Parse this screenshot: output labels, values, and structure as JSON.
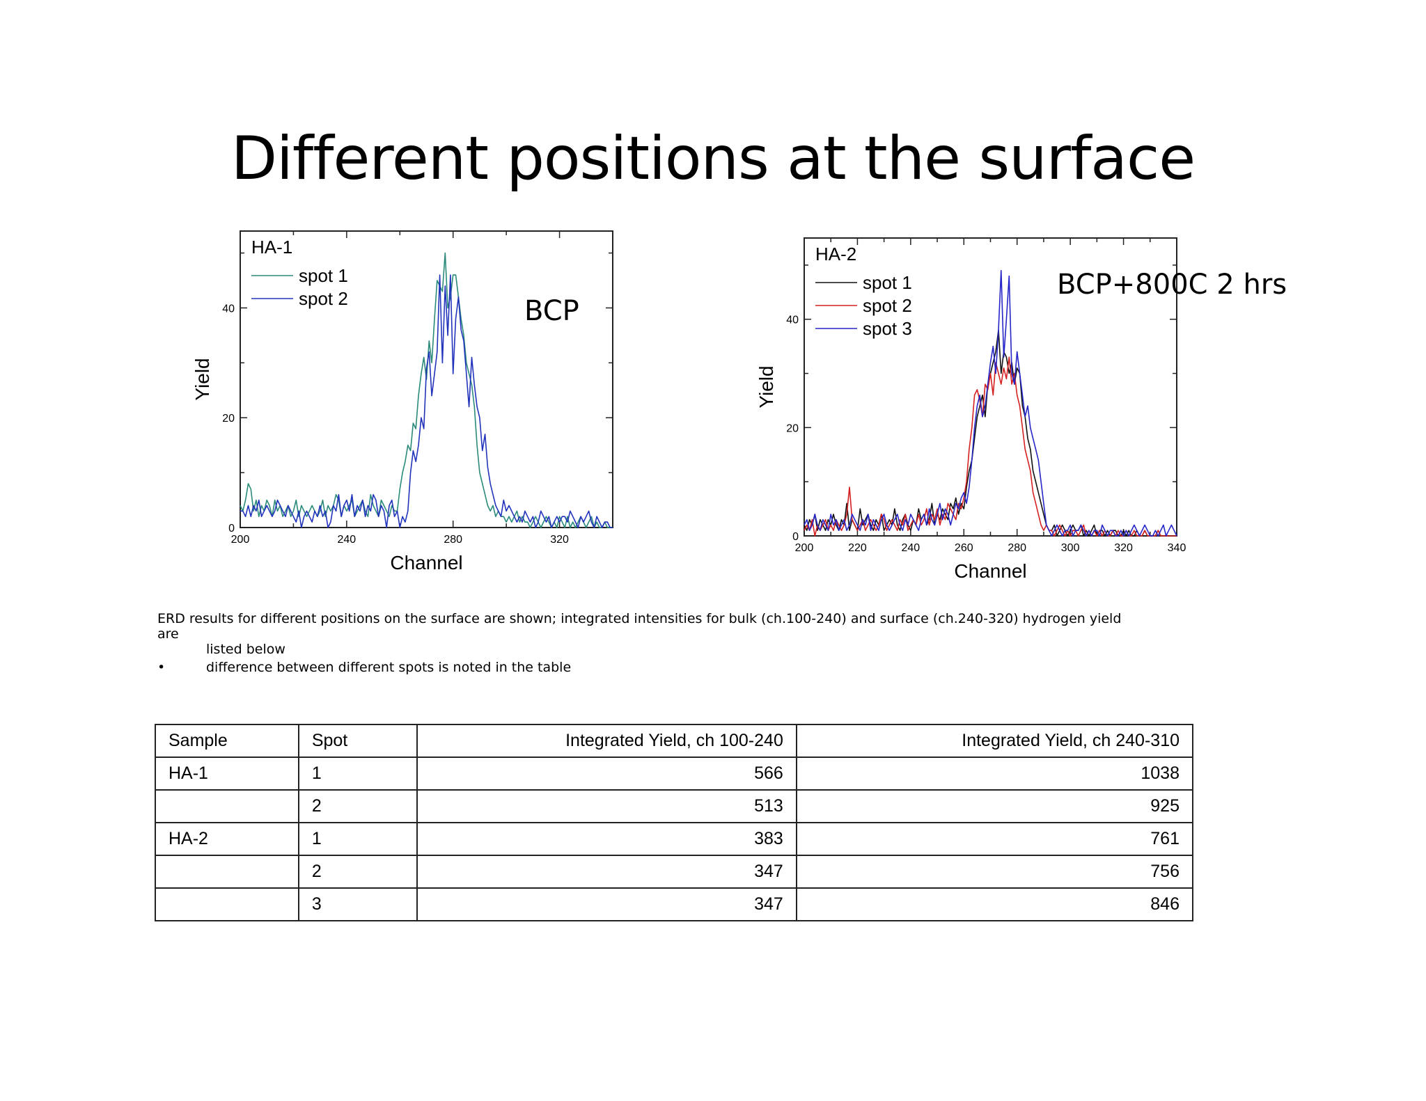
{
  "slide": {
    "title": "Different positions at the surface",
    "caption_line1": "ERD results for different positions on the surface are shown; integrated intensities for bulk (ch.100-240) and surface (ch.240-320) hydrogen yield are",
    "caption_line2": "listed below",
    "bullet_symbol": "•",
    "bullet_text": "difference between different spots is noted in the table"
  },
  "chart_annotations": [
    "BCP",
    "BCP+800C 2 hrs"
  ],
  "chart_data": [
    {
      "type": "line",
      "title": "HA-1",
      "xlabel": "Channel",
      "ylabel": "Yield",
      "xlim": [
        200,
        340
      ],
      "ylim": [
        0,
        54
      ],
      "xticks": [
        200,
        240,
        280,
        320
      ],
      "yticks": [
        0,
        20,
        40
      ],
      "legend": "top-left",
      "series": [
        {
          "name": "spot 1",
          "color": "#2a8a7a",
          "start": 200,
          "step": 1,
          "values": [
            4,
            3,
            5,
            8,
            7,
            3,
            5,
            2,
            4,
            3,
            5,
            4,
            2,
            5,
            3,
            4,
            2,
            3,
            4,
            2,
            3,
            5,
            2,
            4,
            3,
            2,
            3,
            4,
            3,
            2,
            3,
            5,
            2,
            4,
            3,
            4,
            6,
            5,
            2,
            4,
            3,
            4,
            5,
            2,
            3,
            4,
            5,
            3,
            2,
            6,
            4,
            3,
            2,
            5,
            4,
            3,
            2,
            4,
            3,
            3,
            7,
            10,
            12,
            15,
            14,
            19,
            18,
            24,
            28,
            31,
            27,
            34,
            30,
            38,
            45,
            44,
            43,
            50,
            40,
            42,
            46,
            46,
            42,
            38,
            35,
            30,
            28,
            26,
            22,
            15,
            10,
            8,
            6,
            4,
            3,
            4,
            2,
            3,
            2,
            2,
            1,
            2,
            1,
            2,
            3,
            1,
            2,
            1,
            1,
            0,
            1,
            2,
            1,
            0,
            1,
            2,
            1,
            0,
            1,
            0,
            2,
            1,
            0,
            2,
            0,
            1,
            0,
            1,
            2,
            1,
            0,
            1,
            2,
            0,
            1,
            0,
            0,
            1,
            0,
            0,
            0
          ]
        },
        {
          "name": "spot 2",
          "color": "#2233bb",
          "start": 200,
          "step": 1,
          "values": [
            3,
            3,
            2,
            4,
            2,
            4,
            3,
            5,
            2,
            3,
            4,
            3,
            2,
            3,
            5,
            4,
            3,
            2,
            4,
            3,
            2,
            1,
            3,
            0,
            2,
            3,
            2,
            1,
            3,
            2,
            4,
            2,
            3,
            0,
            1,
            4,
            3,
            6,
            2,
            4,
            5,
            3,
            6,
            2,
            4,
            3,
            5,
            2,
            4,
            3,
            6,
            5,
            2,
            4,
            3,
            0,
            4,
            5,
            2,
            3,
            0,
            2,
            1,
            3,
            10,
            14,
            12,
            15,
            20,
            18,
            29,
            32,
            24,
            28,
            32,
            46,
            30,
            44,
            35,
            46,
            28,
            38,
            42,
            36,
            34,
            28,
            22,
            31,
            26,
            22,
            20,
            14,
            17,
            11,
            8,
            6,
            4,
            3,
            2,
            5,
            3,
            4,
            3,
            2,
            1,
            2,
            1,
            3,
            2,
            1,
            2,
            0,
            1,
            3,
            2,
            1,
            2,
            0,
            1,
            2,
            1,
            2,
            2,
            1,
            3,
            2,
            1,
            0,
            2,
            1,
            2,
            3,
            1,
            0,
            2,
            1,
            0,
            1,
            1,
            0,
            0
          ]
        }
      ]
    },
    {
      "type": "line",
      "title": "HA-2",
      "xlabel": "Channel",
      "ylabel": "Yield",
      "xlim": [
        200,
        340
      ],
      "ylim": [
        0,
        55
      ],
      "xticks": [
        200,
        220,
        240,
        260,
        280,
        300,
        320,
        340
      ],
      "yticks": [
        0,
        20,
        40
      ],
      "legend": "top-left",
      "series": [
        {
          "name": "spot 1",
          "color": "#111111",
          "start": 200,
          "step": 1,
          "values": [
            2,
            1,
            3,
            2,
            4,
            1,
            3,
            2,
            1,
            3,
            2,
            4,
            2,
            1,
            3,
            2,
            6,
            1,
            3,
            2,
            1,
            5,
            2,
            3,
            4,
            2,
            1,
            3,
            2,
            4,
            1,
            2,
            3,
            2,
            5,
            2,
            1,
            3,
            4,
            2,
            1,
            3,
            2,
            5,
            3,
            4,
            2,
            3,
            6,
            2,
            4,
            3,
            5,
            4,
            3,
            6,
            5,
            7,
            4,
            6,
            5,
            9,
            12,
            14,
            18,
            22,
            24,
            26,
            22,
            28,
            30,
            32,
            34,
            38,
            30,
            34,
            33,
            30,
            32,
            28,
            31,
            30,
            24,
            22,
            18,
            16,
            12,
            10,
            8,
            6,
            4,
            2,
            1,
            1,
            2,
            0,
            1,
            2,
            1,
            0,
            1,
            2,
            1,
            1,
            2,
            0,
            1,
            0,
            1,
            2,
            0,
            1,
            1,
            0,
            1,
            0,
            1,
            1,
            0,
            0,
            1,
            0,
            1,
            0,
            0,
            1,
            0,
            0,
            1,
            0,
            0,
            0,
            0,
            1,
            0,
            0,
            0,
            0,
            0,
            0,
            0
          ]
        },
        {
          "name": "spot 2",
          "color": "#d42020",
          "start": 200,
          "step": 1,
          "values": [
            1,
            2,
            1,
            3,
            0,
            2,
            1,
            2,
            3,
            1,
            2,
            1,
            3,
            2,
            1,
            2,
            4,
            9,
            3,
            2,
            1,
            2,
            3,
            1,
            2,
            3,
            2,
            1,
            2,
            4,
            3,
            1,
            2,
            3,
            2,
            1,
            3,
            2,
            4,
            1,
            2,
            3,
            2,
            4,
            2,
            3,
            5,
            2,
            4,
            3,
            5,
            2,
            4,
            3,
            6,
            5,
            4,
            3,
            6,
            5,
            7,
            10,
            16,
            20,
            26,
            27,
            25,
            22,
            28,
            27,
            30,
            26,
            32,
            30,
            28,
            31,
            29,
            33,
            28,
            30,
            26,
            24,
            20,
            16,
            14,
            12,
            8,
            6,
            4,
            2,
            1,
            2,
            1,
            1,
            0,
            1,
            2,
            1,
            0,
            1,
            0,
            1,
            1,
            0,
            1,
            2,
            0,
            1,
            0,
            1,
            0,
            1,
            0,
            1,
            0,
            0,
            1,
            0,
            1,
            0,
            0,
            1,
            0,
            0,
            1,
            0,
            0,
            0,
            1,
            0,
            0,
            0,
            0,
            1,
            0,
            0,
            0,
            0,
            0,
            0,
            0
          ]
        },
        {
          "name": "spot 3",
          "color": "#2525c8",
          "start": 200,
          "step": 1,
          "values": [
            2,
            3,
            1,
            2,
            4,
            2,
            1,
            3,
            2,
            1,
            4,
            2,
            3,
            1,
            2,
            3,
            1,
            2,
            4,
            3,
            2,
            1,
            3,
            2,
            4,
            1,
            3,
            2,
            1,
            3,
            4,
            2,
            1,
            2,
            3,
            4,
            2,
            1,
            3,
            2,
            4,
            3,
            2,
            1,
            3,
            4,
            2,
            5,
            3,
            2,
            4,
            6,
            3,
            5,
            4,
            2,
            4,
            6,
            5,
            7,
            8,
            6,
            9,
            14,
            20,
            24,
            26,
            22,
            24,
            28,
            32,
            35,
            30,
            38,
            49,
            33,
            40,
            48,
            30,
            28,
            34,
            30,
            26,
            22,
            24,
            20,
            18,
            16,
            14,
            10,
            6,
            2,
            1,
            0,
            1,
            2,
            1,
            0,
            1,
            1,
            2,
            0,
            1,
            1,
            2,
            1,
            0,
            1,
            0,
            1,
            1,
            0,
            2,
            1,
            0,
            1,
            1,
            0,
            0,
            1,
            0,
            1,
            0,
            1,
            2,
            1,
            0,
            1,
            2,
            1,
            0,
            0,
            1,
            0,
            1,
            2,
            0,
            1,
            2,
            1,
            0
          ]
        }
      ]
    }
  ],
  "table": {
    "headers": [
      "Sample",
      "Spot",
      "Integrated Yield, ch 100-240",
      "Integrated Yield, ch 240-310"
    ],
    "rows": [
      [
        "HA-1",
        "1",
        "566",
        "1038"
      ],
      [
        "",
        "2",
        "513",
        "925"
      ],
      [
        "HA-2",
        "1",
        "383",
        "761"
      ],
      [
        "",
        "2",
        "347",
        "756"
      ],
      [
        "",
        "3",
        "347",
        "846"
      ]
    ]
  }
}
